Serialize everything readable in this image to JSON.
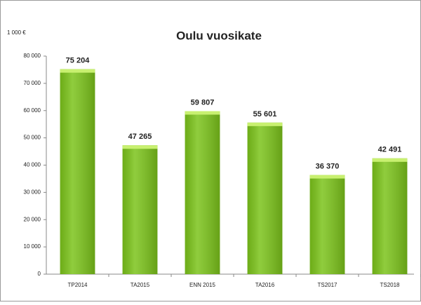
{
  "chart_data": {
    "type": "bar",
    "title": "Oulu vuosikate",
    "y_axis_label": "1 000 €",
    "categories": [
      "TP2014",
      "TA2015",
      "ENN 2015",
      "TA2016",
      "TS2017",
      "TS2018"
    ],
    "values": [
      75204,
      47265,
      59807,
      55601,
      36370,
      42491
    ],
    "value_labels": [
      "75 204",
      "47 265",
      "59 807",
      "55 601",
      "36 370",
      "42 491"
    ],
    "color": "#7cc41b",
    "ylim": [
      0,
      80000
    ],
    "yticks": [
      0,
      {
        "value": 10000,
        "label": "10 000"
      },
      {
        "value": 20000,
        "label": "20 000"
      },
      {
        "value": 30000,
        "label": "30 000"
      },
      {
        "value": 40000,
        "label": "40 000"
      },
      {
        "value": 50000,
        "label": "50 000"
      },
      {
        "value": 60000,
        "label": "60 000"
      },
      {
        "value": 70000,
        "label": "70 000"
      },
      {
        "value": 80000,
        "label": "80 000"
      }
    ],
    "grid": false
  }
}
